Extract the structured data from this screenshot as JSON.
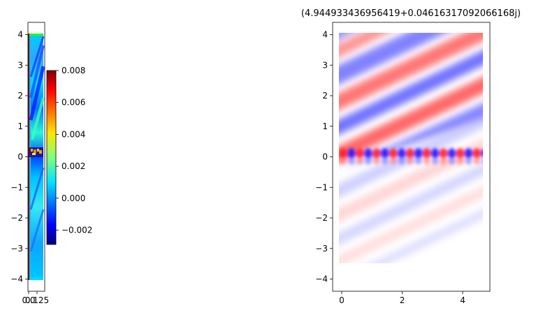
{
  "chart_data": [
    {
      "type": "heatmap",
      "title": "",
      "xlabel": "",
      "ylabel": "",
      "colormap": "jet",
      "xlim": [
        0,
        0.25
      ],
      "ylim": [
        -4.4,
        4.4
      ],
      "xticks": [
        {
          "value": 0.0,
          "label": "0.0"
        },
        {
          "value": 0.125,
          "label": "0.125"
        }
      ],
      "yticks": [
        {
          "value": 4,
          "label": "4"
        },
        {
          "value": 3,
          "label": "3"
        },
        {
          "value": 2,
          "label": "2"
        },
        {
          "value": 1,
          "label": "1"
        },
        {
          "value": 0,
          "label": "0"
        },
        {
          "value": -1,
          "label": "−1"
        },
        {
          "value": -2,
          "label": "−2"
        },
        {
          "value": -3,
          "label": "−3"
        },
        {
          "value": -4,
          "label": "−4"
        }
      ],
      "colorbar": {
        "range": [
          -0.0029,
          0.008
        ],
        "ticks": [
          {
            "value": 0.008,
            "label": "0.008"
          },
          {
            "value": 0.006,
            "label": "0.006"
          },
          {
            "value": 0.004,
            "label": "0.004"
          },
          {
            "value": 0.002,
            "label": "0.002"
          },
          {
            "value": 0.0,
            "label": "0.000"
          },
          {
            "value": -0.002,
            "label": "−0.002"
          }
        ]
      }
    },
    {
      "type": "heatmap",
      "title": "(4.944933436956419+0.04616317092066168j)",
      "xlabel": "",
      "ylabel": "",
      "colormap": "bwr",
      "xlim": [
        -0.3,
        4.9
      ],
      "ylim": [
        -4.4,
        4.4
      ],
      "xticks": [
        {
          "value": 0,
          "label": "0"
        },
        {
          "value": 2,
          "label": "2"
        },
        {
          "value": 4,
          "label": "4"
        }
      ],
      "yticks": [
        {
          "value": 4,
          "label": "4"
        },
        {
          "value": 3,
          "label": "3"
        },
        {
          "value": 2,
          "label": "2"
        },
        {
          "value": 1,
          "label": "1"
        },
        {
          "value": 0,
          "label": "0"
        },
        {
          "value": -1,
          "label": "−1"
        },
        {
          "value": -2,
          "label": "−2"
        },
        {
          "value": -3,
          "label": "−3"
        },
        {
          "value": -4,
          "label": "−4"
        }
      ]
    }
  ]
}
